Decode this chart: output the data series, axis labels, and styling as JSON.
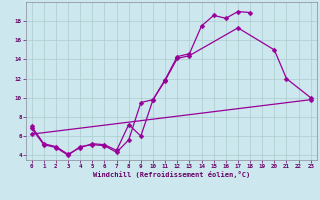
{
  "xlabel": "Windchill (Refroidissement éolien,°C)",
  "background_color": "#cce8ee",
  "grid_color": "#aacccc",
  "line_color": "#990099",
  "tick_color": "#660066",
  "xlim": [
    -0.5,
    23.5
  ],
  "ylim": [
    3.5,
    20.0
  ],
  "xticks": [
    0,
    1,
    2,
    3,
    4,
    5,
    6,
    7,
    8,
    9,
    10,
    11,
    12,
    13,
    14,
    15,
    16,
    17,
    18,
    19,
    20,
    21,
    22,
    23
  ],
  "yticks": [
    4,
    6,
    8,
    10,
    12,
    14,
    16,
    18
  ],
  "line1_x": [
    0,
    1,
    2,
    3,
    4,
    5,
    6,
    7,
    8,
    9,
    10,
    11,
    12,
    13,
    14,
    15,
    16,
    17,
    18
  ],
  "line1_y": [
    7.0,
    5.2,
    4.9,
    4.1,
    4.8,
    5.2,
    5.1,
    4.5,
    7.2,
    6.0,
    9.8,
    11.9,
    14.3,
    14.6,
    17.5,
    18.6,
    18.3,
    19.0,
    18.9
  ],
  "line2_x": [
    0,
    1,
    2,
    3,
    4,
    5,
    6,
    7,
    8,
    9,
    10,
    11,
    12,
    13,
    17,
    20,
    21,
    23
  ],
  "line2_y": [
    6.8,
    5.1,
    4.8,
    4.0,
    4.9,
    5.1,
    5.0,
    4.3,
    5.6,
    9.5,
    9.8,
    11.8,
    14.1,
    14.4,
    17.3,
    15.0,
    12.0,
    10.0
  ],
  "line3_x": [
    0,
    23
  ],
  "line3_y": [
    6.2,
    9.8
  ]
}
